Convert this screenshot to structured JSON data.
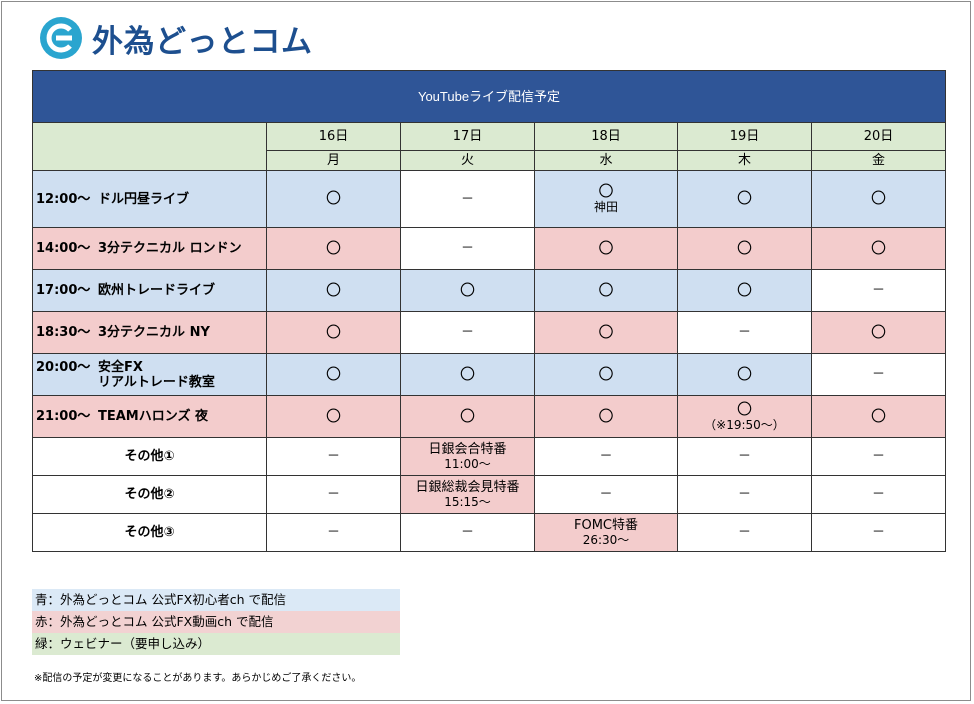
{
  "logo": {
    "text": "外為どっとコム",
    "mark_color": "#2aa5cf"
  },
  "title": "YouTubeライブ配信予定",
  "days": [
    {
      "date": "16日",
      "weekday": "月"
    },
    {
      "date": "17日",
      "weekday": "火"
    },
    {
      "date": "18日",
      "weekday": "水"
    },
    {
      "date": "19日",
      "weekday": "木"
    },
    {
      "date": "20日",
      "weekday": "金"
    }
  ],
  "rows": [
    {
      "time": "12:00〜",
      "name": "ドル円昼ライブ",
      "name2": "",
      "row_color": "blue",
      "cells": [
        {
          "mark": "〇",
          "note": "",
          "color": "blue"
        },
        {
          "mark": "－",
          "note": "",
          "color": "white"
        },
        {
          "mark": "〇",
          "note": "神田",
          "color": "blue"
        },
        {
          "mark": "〇",
          "note": "",
          "color": "blue"
        },
        {
          "mark": "〇",
          "note": "",
          "color": "blue"
        }
      ]
    },
    {
      "time": "14:00〜",
      "name": "3分テクニカル ロンドン",
      "name2": "",
      "row_color": "pink",
      "cells": [
        {
          "mark": "〇",
          "note": "",
          "color": "pink"
        },
        {
          "mark": "－",
          "note": "",
          "color": "white"
        },
        {
          "mark": "〇",
          "note": "",
          "color": "pink"
        },
        {
          "mark": "〇",
          "note": "",
          "color": "pink"
        },
        {
          "mark": "〇",
          "note": "",
          "color": "pink"
        }
      ]
    },
    {
      "time": "17:00〜",
      "name": "欧州トレードライブ",
      "name2": "",
      "row_color": "blue",
      "cells": [
        {
          "mark": "〇",
          "note": "",
          "color": "blue"
        },
        {
          "mark": "〇",
          "note": "",
          "color": "blue"
        },
        {
          "mark": "〇",
          "note": "",
          "color": "blue"
        },
        {
          "mark": "〇",
          "note": "",
          "color": "blue"
        },
        {
          "mark": "－",
          "note": "",
          "color": "white"
        }
      ]
    },
    {
      "time": "18:30〜",
      "name": "3分テクニカル NY",
      "name2": "",
      "row_color": "pink",
      "cells": [
        {
          "mark": "〇",
          "note": "",
          "color": "pink"
        },
        {
          "mark": "－",
          "note": "",
          "color": "white"
        },
        {
          "mark": "〇",
          "note": "",
          "color": "pink"
        },
        {
          "mark": "－",
          "note": "",
          "color": "white"
        },
        {
          "mark": "〇",
          "note": "",
          "color": "pink"
        }
      ]
    },
    {
      "time": "20:00〜",
      "name": "安全FX",
      "name2": "リアルトレード教室",
      "row_color": "blue",
      "cells": [
        {
          "mark": "〇",
          "note": "",
          "color": "blue"
        },
        {
          "mark": "〇",
          "note": "",
          "color": "blue"
        },
        {
          "mark": "〇",
          "note": "",
          "color": "blue"
        },
        {
          "mark": "〇",
          "note": "",
          "color": "blue"
        },
        {
          "mark": "－",
          "note": "",
          "color": "white"
        }
      ]
    },
    {
      "time": "21:00〜",
      "name": "TEAMハロンズ 夜",
      "name2": "",
      "row_color": "pink",
      "cells": [
        {
          "mark": "〇",
          "note": "",
          "color": "pink"
        },
        {
          "mark": "〇",
          "note": "",
          "color": "pink"
        },
        {
          "mark": "〇",
          "note": "",
          "color": "pink"
        },
        {
          "mark": "〇",
          "note": "（※19:50〜）",
          "color": "pink"
        },
        {
          "mark": "〇",
          "note": "",
          "color": "pink"
        }
      ]
    }
  ],
  "other_rows": [
    {
      "label": "その他①",
      "cells": [
        {
          "mark": "－",
          "note": "",
          "color": "white"
        },
        {
          "mark": "日銀会合特番",
          "note": "11:00〜",
          "color": "pink"
        },
        {
          "mark": "－",
          "note": "",
          "color": "white"
        },
        {
          "mark": "－",
          "note": "",
          "color": "white"
        },
        {
          "mark": "－",
          "note": "",
          "color": "white"
        }
      ]
    },
    {
      "label": "その他②",
      "cells": [
        {
          "mark": "－",
          "note": "",
          "color": "white"
        },
        {
          "mark": "日銀総裁会見特番",
          "note": "15:15〜",
          "color": "pink"
        },
        {
          "mark": "－",
          "note": "",
          "color": "white"
        },
        {
          "mark": "－",
          "note": "",
          "color": "white"
        },
        {
          "mark": "－",
          "note": "",
          "color": "white"
        }
      ]
    },
    {
      "label": "その他③",
      "cells": [
        {
          "mark": "－",
          "note": "",
          "color": "white"
        },
        {
          "mark": "－",
          "note": "",
          "color": "white"
        },
        {
          "mark": "FOMC特番",
          "note": "26:30〜",
          "color": "pink"
        },
        {
          "mark": "－",
          "note": "",
          "color": "white"
        },
        {
          "mark": "－",
          "note": "",
          "color": "white"
        }
      ]
    }
  ],
  "legend": {
    "blue": "青：外為どっとコム 公式FX初心者ch で配信",
    "red": "赤：外為どっとコム 公式FX動画ch で配信",
    "green": "緑：ウェビナー（要申し込み）"
  },
  "footnote": "※配信の予定が変更になることがあります。あらかじめご了承ください。",
  "colors": {
    "title_bg": "#2f5597",
    "blue": "#cfdff1",
    "pink": "#f3cccc",
    "green": "#dbead1"
  }
}
